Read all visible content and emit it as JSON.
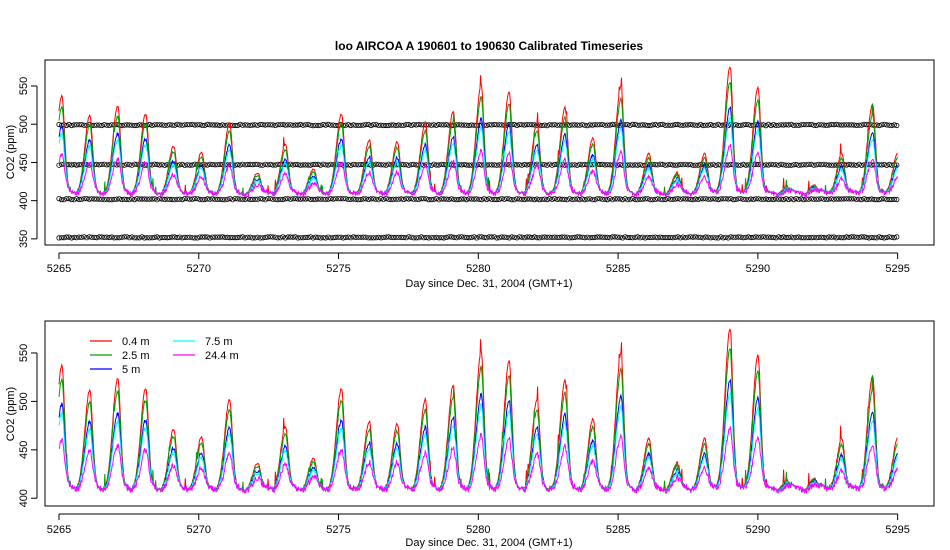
{
  "chart_data": [
    {
      "type": "scatter",
      "title": "loo   AIRCOA  A    190601  to  190630   Calibrated Timeseries",
      "xlabel": "Day since Dec. 31, 2004 (GMT+1)",
      "ylabel": "CO2 (ppm)",
      "xlim": [
        5264.5,
        5296.3
      ],
      "ylim": [
        342,
        584
      ],
      "x_ticks": [
        5265,
        5270,
        5275,
        5280,
        5285,
        5290,
        5295
      ],
      "y_ticks": [
        350,
        400,
        450,
        500,
        550
      ],
      "series": [
        {
          "values_desc": "calibration standard points (open circles)",
          "y_levels": [
            352,
            402,
            447,
            499
          ],
          "x_range": [
            5265,
            5295
          ]
        },
        {
          "name": "0.4 m",
          "color": "#ff0000"
        },
        {
          "name": "2.5 m",
          "color": "#00a000"
        },
        {
          "name": "5 m",
          "color": "#0000ff"
        },
        {
          "name": "7.5 m",
          "color": "#00ffff"
        },
        {
          "name": "24.4 m",
          "color": "#ff00ff"
        }
      ]
    },
    {
      "type": "line",
      "xlabel": "Day since Dec. 31, 2004 (GMT+1)",
      "ylabel": "CO2 (ppm)",
      "xlim": [
        5264.5,
        5296.3
      ],
      "ylim": [
        392,
        583
      ],
      "x_ticks": [
        5265,
        5270,
        5275,
        5280,
        5285,
        5290,
        5295
      ],
      "y_ticks": [
        400,
        450,
        500,
        550
      ],
      "legend": "top-left",
      "series": [
        {
          "name": "0.4 m",
          "color": "#ff0000"
        },
        {
          "name": "2.5 m",
          "color": "#00a000"
        },
        {
          "name": "5 m",
          "color": "#0000ff"
        },
        {
          "name": "7.5 m",
          "color": "#00ffff"
        },
        {
          "name": "24.4 m",
          "color": "#ff00ff"
        }
      ]
    }
  ],
  "daily_peaks": [
    {
      "day": 5265.1,
      "peak": 535
    },
    {
      "day": 5266.1,
      "peak": 510
    },
    {
      "day": 5267.1,
      "peak": 522
    },
    {
      "day": 5268.1,
      "peak": 512
    },
    {
      "day": 5269.1,
      "peak": 470
    },
    {
      "day": 5270.1,
      "peak": 462
    },
    {
      "day": 5271.1,
      "peak": 500
    },
    {
      "day": 5272.1,
      "peak": 435
    },
    {
      "day": 5273.1,
      "peak": 472
    },
    {
      "day": 5274.1,
      "peak": 440
    },
    {
      "day": 5275.1,
      "peak": 512
    },
    {
      "day": 5276.1,
      "peak": 478
    },
    {
      "day": 5277.1,
      "peak": 475
    },
    {
      "day": 5278.1,
      "peak": 500
    },
    {
      "day": 5279.1,
      "peak": 515
    },
    {
      "day": 5280.1,
      "peak": 550
    },
    {
      "day": 5281.1,
      "peak": 540
    },
    {
      "day": 5282.1,
      "peak": 500
    },
    {
      "day": 5283.1,
      "peak": 520
    },
    {
      "day": 5284.1,
      "peak": 480
    },
    {
      "day": 5285.1,
      "peak": 548
    },
    {
      "day": 5286.1,
      "peak": 460
    },
    {
      "day": 5287.1,
      "peak": 435
    },
    {
      "day": 5288.1,
      "peak": 460
    },
    {
      "day": 5289.0,
      "peak": 575
    },
    {
      "day": 5290.0,
      "peak": 548
    },
    {
      "day": 5291.0,
      "peak": 418
    },
    {
      "day": 5292.0,
      "peak": 420
    },
    {
      "day": 5293.0,
      "peak": 462
    },
    {
      "day": 5294.1,
      "peak": 525
    },
    {
      "day": 5295.0,
      "peak": 462
    }
  ]
}
